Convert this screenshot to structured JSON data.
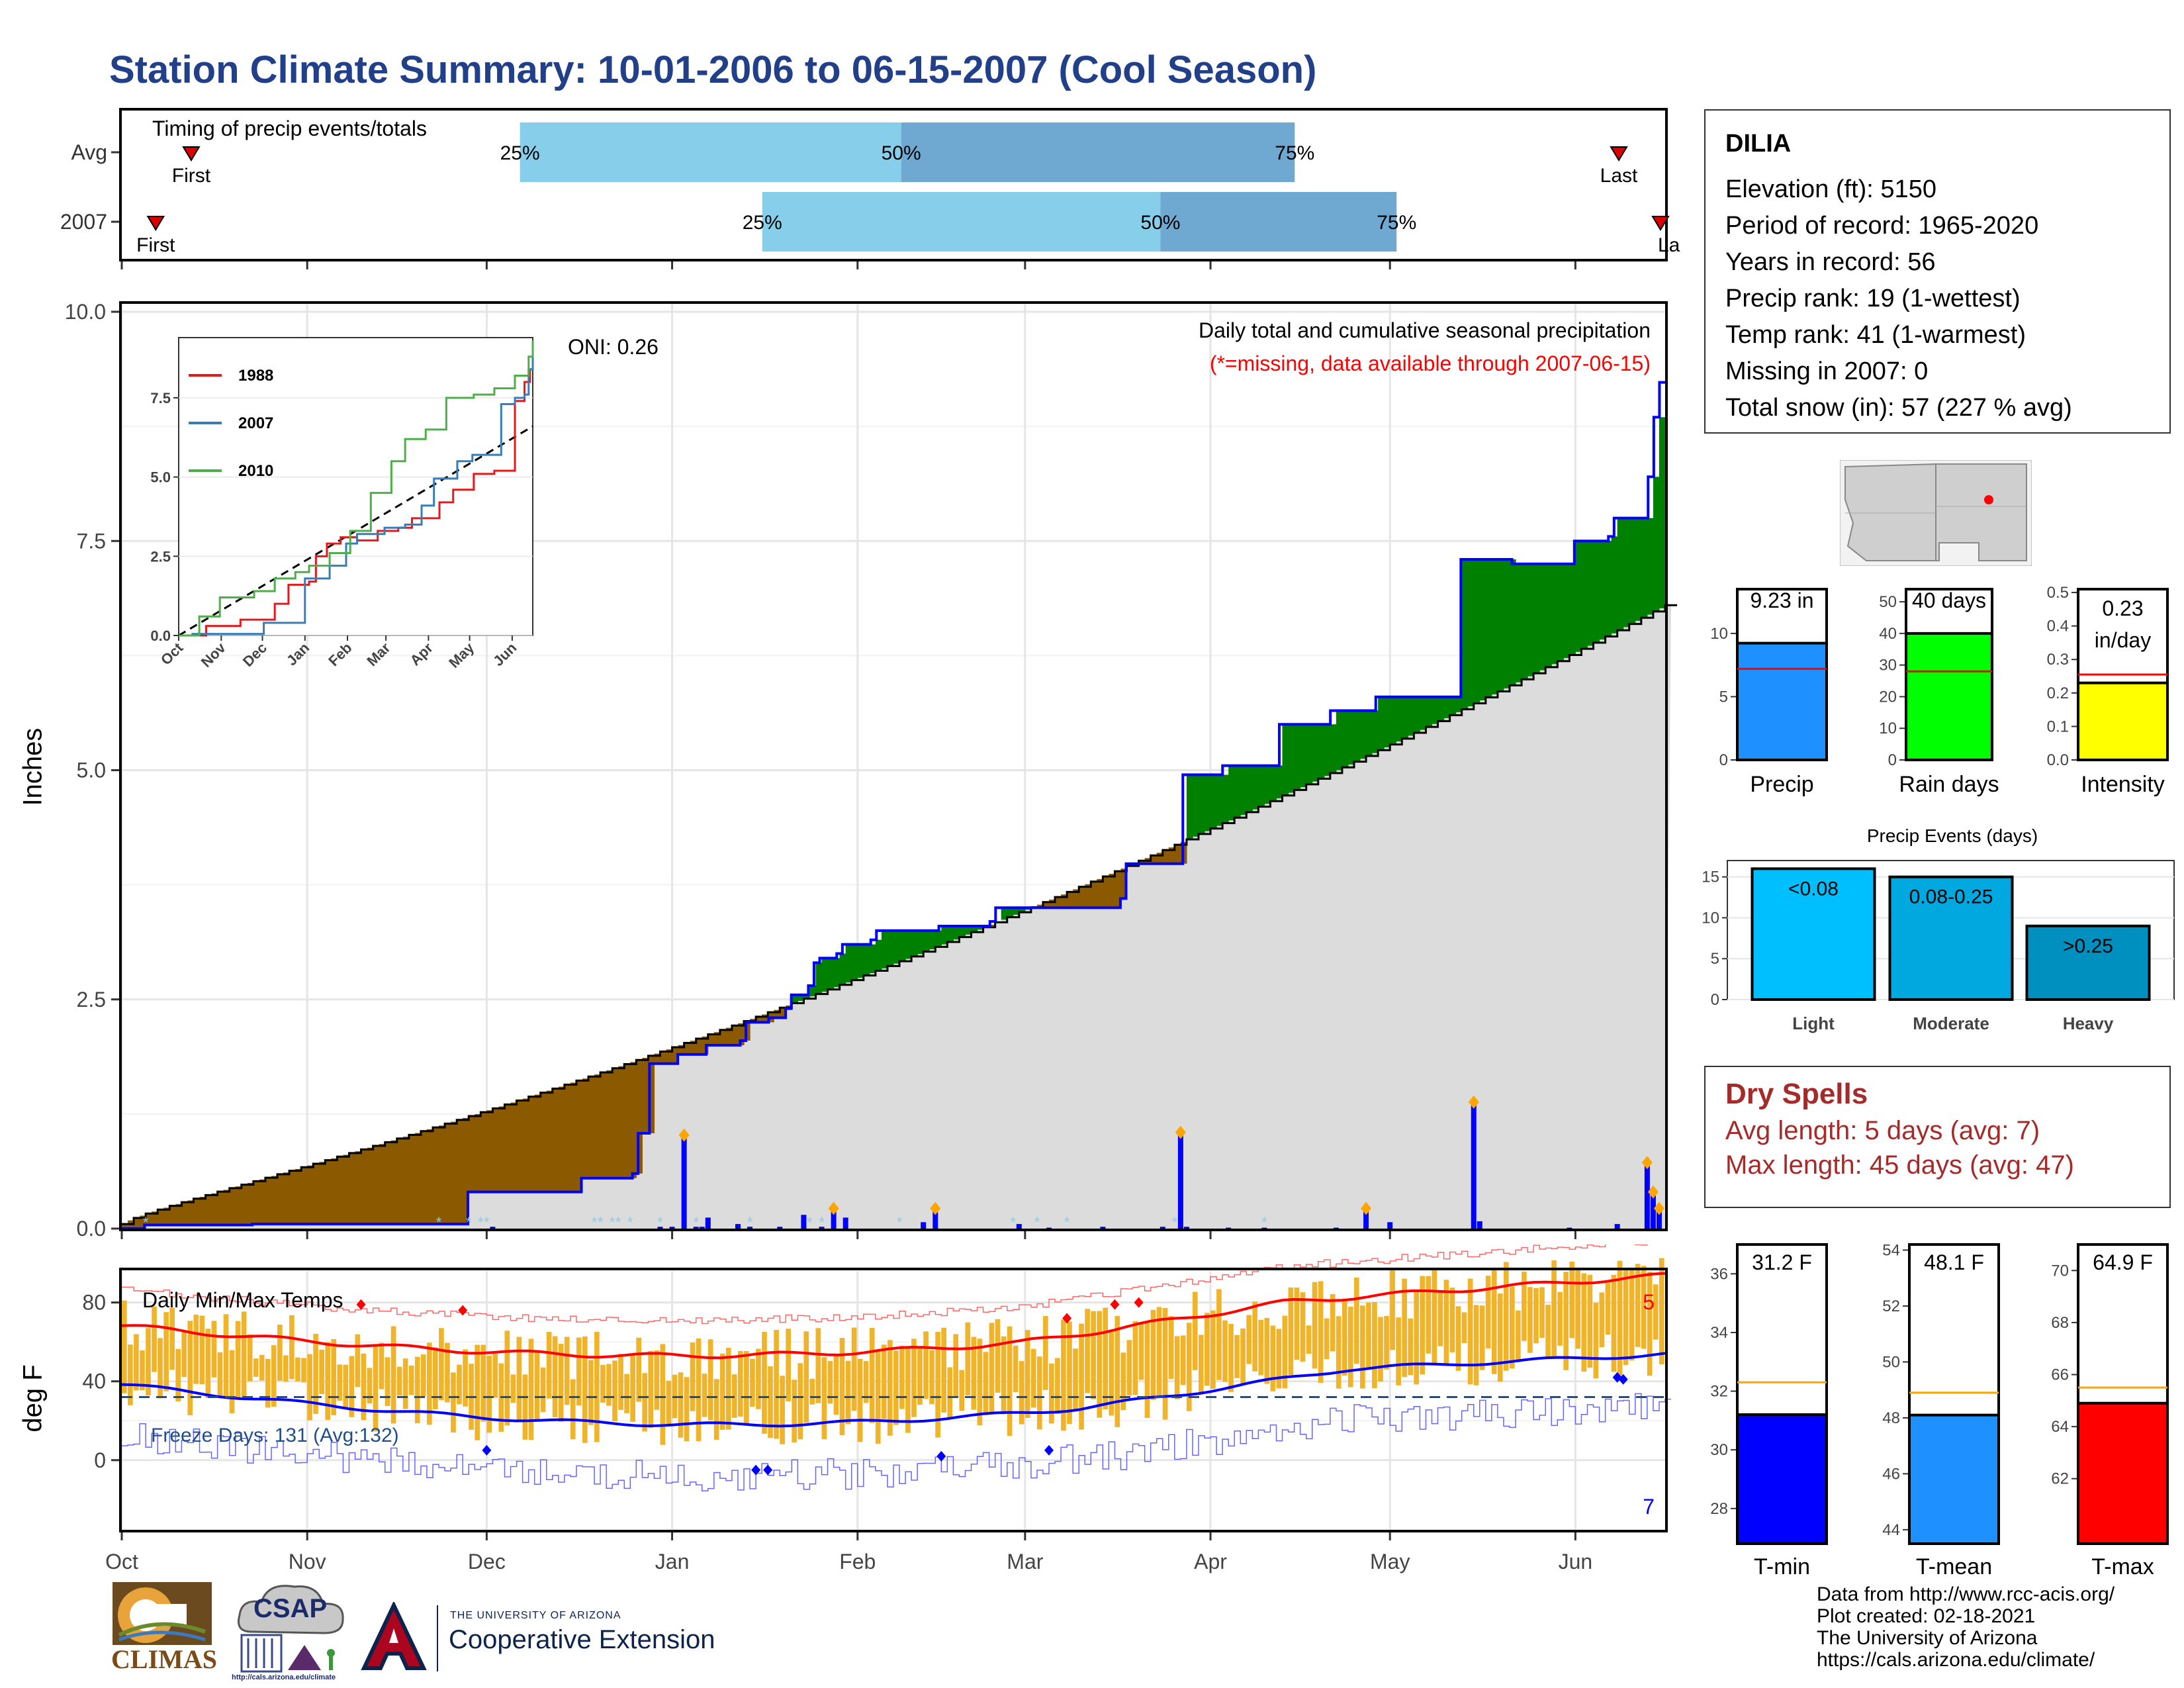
{
  "title": "Station Climate Summary: 10-01-2006 to 06-15-2007 (Cool Season)",
  "timing": {
    "label": "Timing of precip events/totals",
    "rows": [
      {
        "name": "Avg",
        "first_label": "First",
        "last_label": "Last",
        "first_frac": 0.045,
        "last_frac": 0.97,
        "p25": 0.258,
        "p50": 0.505,
        "p75": 0.76,
        "p25_label": "25%",
        "p50_label": "50%",
        "p75_label": "75%"
      },
      {
        "name": "2007",
        "first_label": "First",
        "last_label": "La",
        "first_frac": 0.022,
        "last_frac": 0.997,
        "p25": 0.415,
        "p50": 0.673,
        "p75": 0.826,
        "p25_label": "25%",
        "p50_label": "50%",
        "p75_label": "75%"
      }
    ]
  },
  "precip": {
    "ylabel": "Inches",
    "caption": "Daily total and cumulative seasonal precipitation",
    "missing_note": "(*=missing, data available through 2007-06-15)",
    "oni": "ONI: 0.26",
    "yticks": [
      "0.0",
      "2.5",
      "5.0",
      "7.5",
      "10.0"
    ],
    "inset": {
      "legend": [
        {
          "name": "1988",
          "color": "#e41a1c"
        },
        {
          "name": "2007",
          "color": "#377eb8"
        },
        {
          "name": "2010",
          "color": "#4daf4a"
        }
      ],
      "yticks": [
        "0.0",
        "2.5",
        "5.0",
        "7.5"
      ],
      "xticks": [
        "Oct",
        "Nov",
        "Dec",
        "Jan",
        "Feb",
        "Mar",
        "Apr",
        "May",
        "Jun"
      ]
    }
  },
  "temps": {
    "label": "Daily Min/Max Temps",
    "ylabel": "deg F",
    "yticks": [
      "0",
      "40",
      "80"
    ],
    "freeze_text": "Freeze Days: 131 (Avg:132)",
    "max_count": "5",
    "min_count": "7"
  },
  "xaxis": {
    "months": [
      "Oct",
      "Nov",
      "Dec",
      "Jan",
      "Feb",
      "Mar",
      "Apr",
      "May",
      "Jun"
    ]
  },
  "station": {
    "name": "DILIA",
    "lines": [
      "Elevation (ft): 5150",
      "Period of record: 1965-2020",
      "Years in record: 56",
      "Precip rank: 19 (1-wettest)",
      "Temp rank: 41 (1-warmest)",
      "Missing in 2007: 0",
      "Total snow (in): 57 (227 % avg)"
    ]
  },
  "mini_bars": [
    {
      "label": "Precip",
      "value_label": "9.23 in",
      "value": 9.23,
      "avg": 7.2,
      "ymax": 13.5,
      "ticks": [
        "0",
        "5",
        "10"
      ],
      "tickvals": [
        0,
        5,
        10
      ],
      "color": "#1e90ff"
    },
    {
      "label": "Rain days",
      "value_label": "40 days",
      "value": 40,
      "avg": 28,
      "ymax": 54,
      "ticks": [
        "0",
        "10",
        "20",
        "30",
        "40",
        "50"
      ],
      "tickvals": [
        0,
        10,
        20,
        30,
        40,
        50
      ],
      "color": "#00ff00"
    },
    {
      "label": "Intensity",
      "value_label": "0.23 in/day",
      "value_lines": [
        "0.23",
        "in/day"
      ],
      "value": 0.23,
      "avg": 0.255,
      "ymax": 0.51,
      "ticks": [
        "0.0",
        "0.1",
        "0.2",
        "0.3",
        "0.4",
        "0.5"
      ],
      "tickvals": [
        0,
        0.1,
        0.2,
        0.3,
        0.4,
        0.5
      ],
      "color": "#ffff00"
    }
  ],
  "events": {
    "title": "Precip Events (days)",
    "categories": [
      "Light",
      "Moderate",
      "Heavy"
    ],
    "labels": [
      "<0.08",
      "0.08-0.25",
      ">0.25"
    ],
    "values": [
      16,
      15,
      9
    ],
    "colors": [
      "#00bfff",
      "#00a8e0",
      "#0090c0"
    ],
    "yticks": [
      "0",
      "5",
      "10",
      "15"
    ]
  },
  "dry_spells": {
    "title": "Dry Spells",
    "avg": "Avg length: 5 days (avg: 7)",
    "max": "Max length: 45 days (avg: 47)"
  },
  "temp_bars": [
    {
      "label": "T-min",
      "value_label": "31.2 F",
      "value": 31.2,
      "avg": 32.3,
      "ymin": 26.8,
      "ymax": 37,
      "ticks": [
        "28",
        "30",
        "32",
        "34",
        "36"
      ],
      "tickvals": [
        28,
        30,
        32,
        34,
        36
      ],
      "color": "#0000ff"
    },
    {
      "label": "T-mean",
      "value_label": "48.1 F",
      "value": 48.1,
      "avg": 48.9,
      "ymin": 43.5,
      "ymax": 54.2,
      "ticks": [
        "44",
        "46",
        "48",
        "50",
        "52",
        "54"
      ],
      "tickvals": [
        44,
        46,
        48,
        50,
        52,
        54
      ],
      "color": "#1e90ff"
    },
    {
      "label": "T-max",
      "value_label": "64.9 F",
      "value": 64.9,
      "avg": 65.5,
      "ymin": 59.5,
      "ymax": 71,
      "ticks": [
        "62",
        "64",
        "66",
        "68",
        "70"
      ],
      "tickvals": [
        62,
        64,
        66,
        68,
        70
      ],
      "color": "#ff0000"
    }
  ],
  "credits": [
    "Data from http://www.rcc-acis.org/",
    "Plot created: 02-18-2021",
    "The University of Arizona",
    "https://cals.arizona.edu/climate/"
  ],
  "logos": {
    "climas": "CLIMAS",
    "csap": "CSAP",
    "csap_url": "http://cals.arizona.edu/climate",
    "ua_line1": "THE UNIVERSITY OF ARIZONA",
    "ua_line2": "Cooperative Extension"
  }
}
